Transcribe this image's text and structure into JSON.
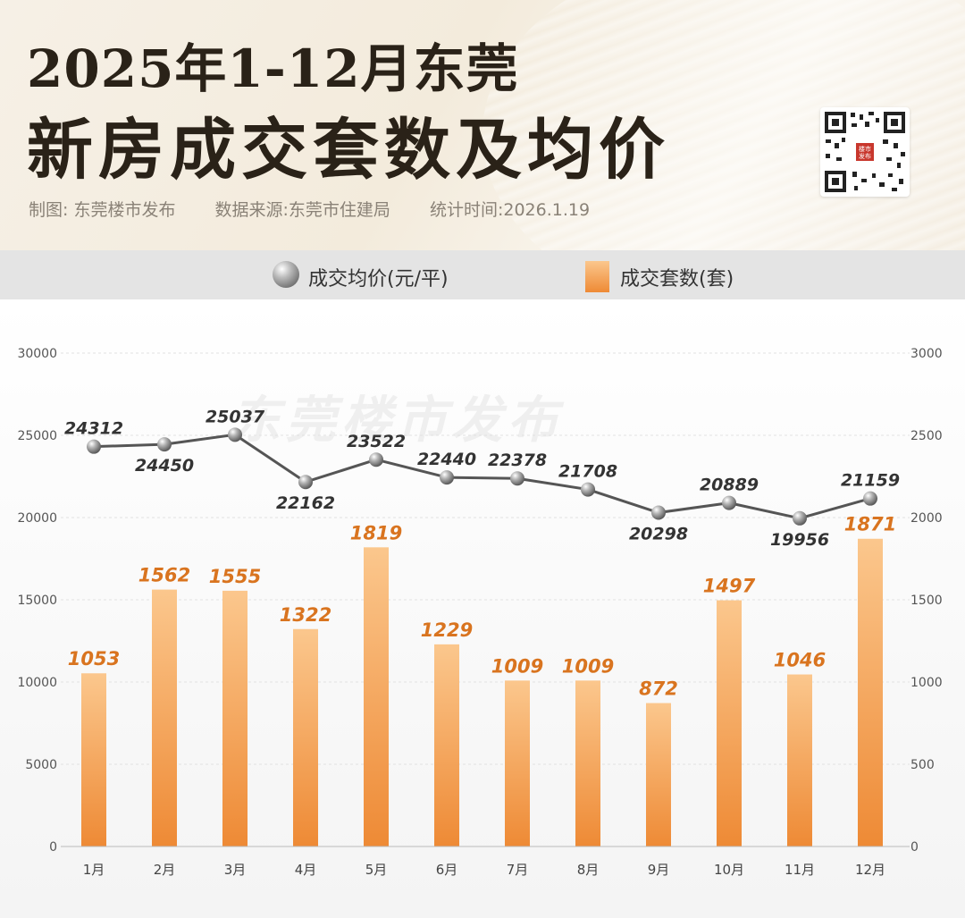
{
  "header": {
    "title_line1": "2025年1-12月东莞",
    "title_line2": "新房成交套数及均价",
    "credit": "制图: 东莞楼市发布",
    "source": "数据来源:东莞市住建局",
    "stat_time": "统计时间:2026.1.19",
    "qr_text": "楼市发布"
  },
  "legend": {
    "price_label": "成交均价(元/平)",
    "units_label": "成交套数(套)"
  },
  "watermark": "东莞楼市发布",
  "colors": {
    "bar_top": "#fbc78d",
    "bar_bottom": "#ee8a35",
    "bar_label": "#d9741f",
    "line": "#555555",
    "price_label": "#333333"
  },
  "chart_data": {
    "type": "bar",
    "categories": [
      "1月",
      "2月",
      "3月",
      "4月",
      "5月",
      "6月",
      "7月",
      "8月",
      "9月",
      "10月",
      "11月",
      "12月"
    ],
    "series": [
      {
        "name": "成交套数(套)",
        "type": "bar",
        "axis": "right",
        "values": [
          1053,
          1562,
          1555,
          1322,
          1819,
          1229,
          1009,
          1009,
          872,
          1497,
          1046,
          1871
        ]
      },
      {
        "name": "成交均价(元/平)",
        "type": "line",
        "axis": "left",
        "values": [
          24312,
          24450,
          25037,
          22162,
          23522,
          22440,
          22378,
          21708,
          20298,
          20889,
          19956,
          21159
        ]
      }
    ],
    "y_left": {
      "ylim": [
        0,
        30000
      ],
      "ticks": [
        "0",
        "5000",
        "10000",
        "15000",
        "20000",
        "25000",
        "30000"
      ]
    },
    "y_right": {
      "ylim": [
        0,
        3000
      ],
      "ticks": [
        "0",
        "500",
        "1000",
        "1500",
        "2000",
        "2500",
        "3000"
      ]
    },
    "grid": true
  }
}
